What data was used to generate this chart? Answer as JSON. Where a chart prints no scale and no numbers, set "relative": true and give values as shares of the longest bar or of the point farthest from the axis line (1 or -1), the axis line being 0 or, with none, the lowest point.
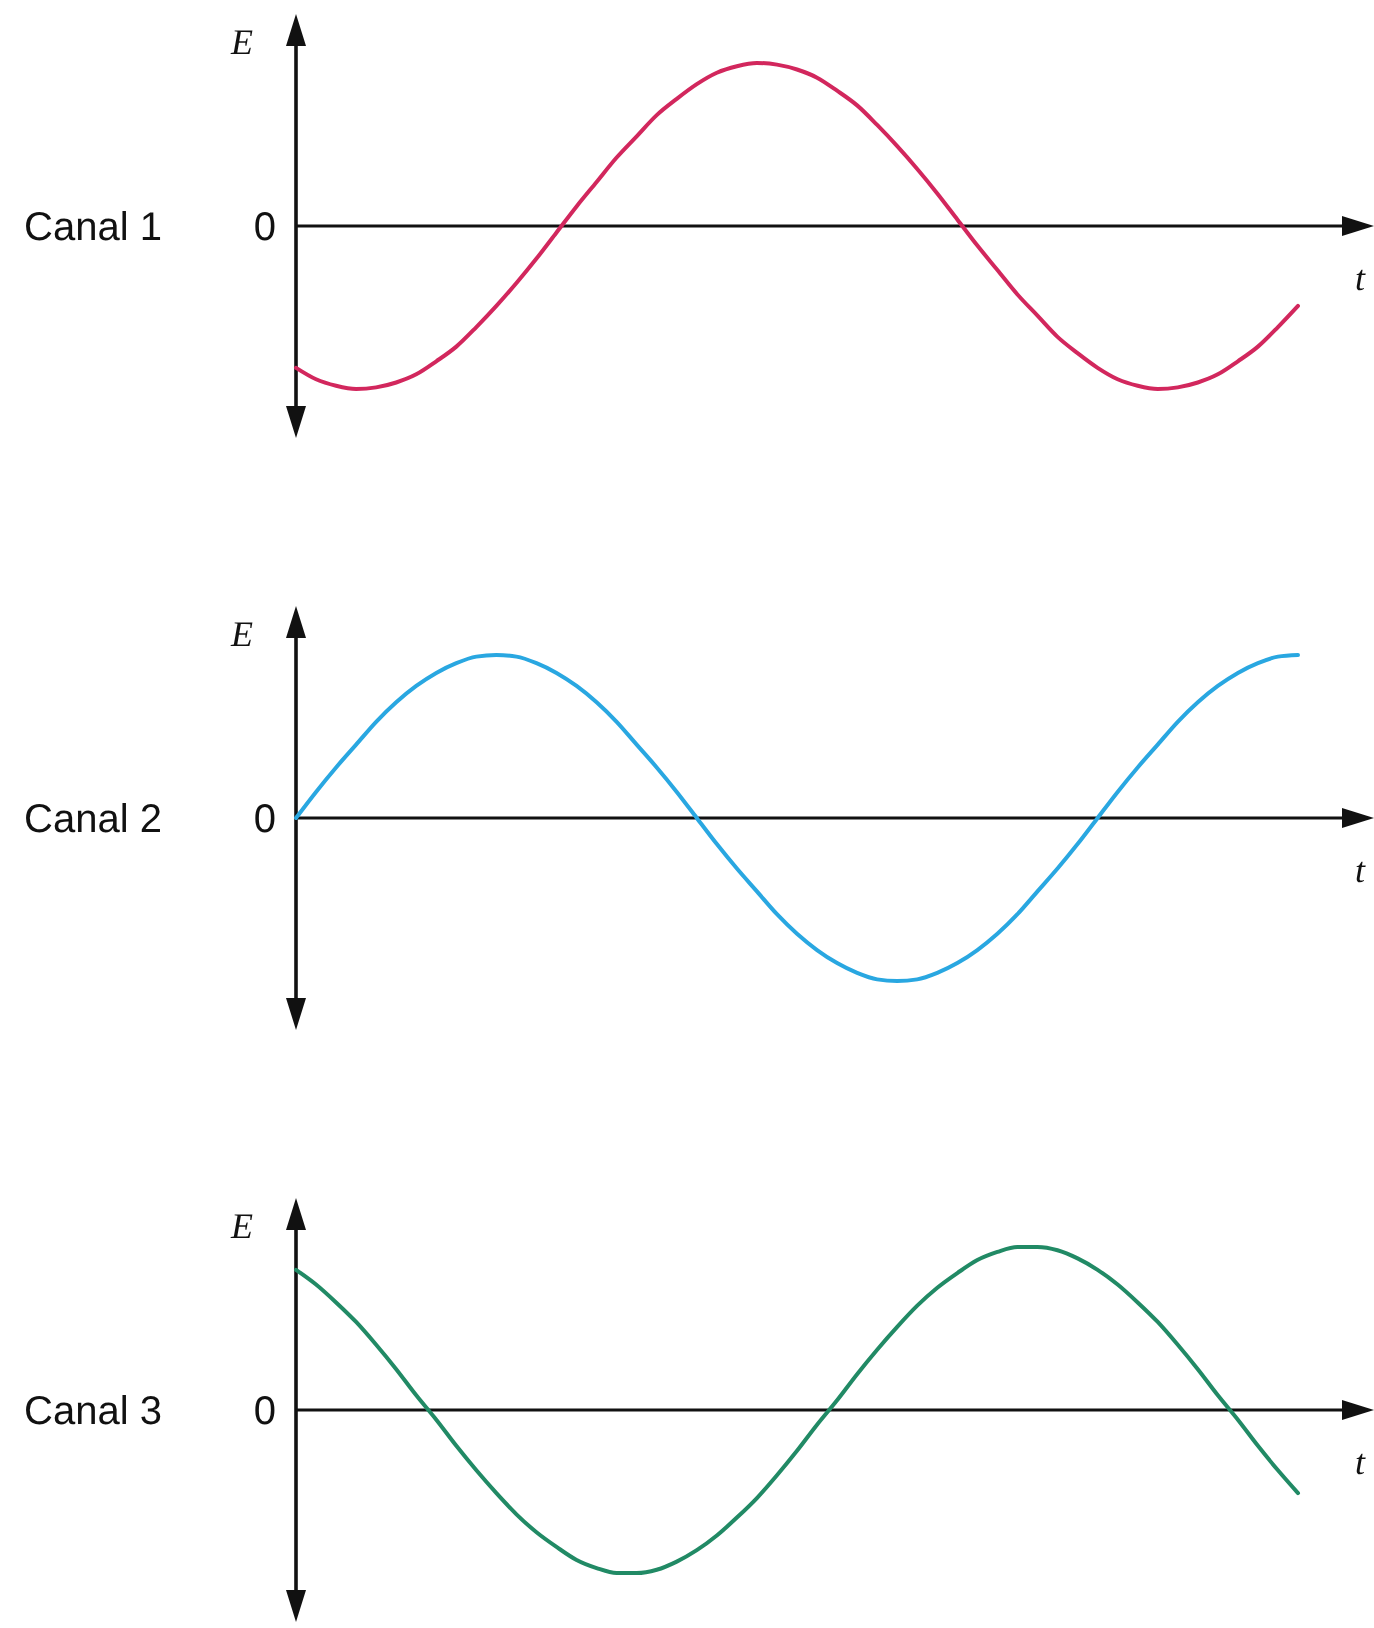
{
  "chart_data": [
    {
      "type": "line",
      "title": "Canal 1",
      "ylabel": "E",
      "xlabel": "t",
      "relative": true,
      "annotations": [
        "0"
      ],
      "categories": [
        null,
        null,
        null,
        null,
        null,
        null,
        null,
        null,
        null,
        null,
        null,
        null,
        null,
        null,
        null,
        null,
        null,
        null,
        null,
        null,
        null,
        null,
        null,
        null,
        null,
        null,
        null,
        null,
        null,
        null,
        null,
        null,
        null,
        null,
        null,
        null,
        null,
        null,
        null,
        null,
        null,
        null,
        null,
        null,
        null,
        null,
        null,
        null,
        null,
        null,
        null
      ],
      "color": "#d2275d",
      "values": [
        -0.87,
        -0.94,
        -0.98,
        -1,
        -0.99,
        -0.96,
        -0.91,
        -0.83,
        -0.74,
        -0.62,
        -0.49,
        -0.35,
        -0.2,
        -0.04,
        0.12,
        0.27,
        0.42,
        0.55,
        0.68,
        0.78,
        0.87,
        0.94,
        0.98,
        1,
        0.99,
        0.96,
        0.91,
        0.83,
        0.74,
        0.62,
        0.49,
        0.35,
        0.2,
        0.04,
        -0.12,
        -0.27,
        -0.42,
        -0.55,
        -0.68,
        -0.78,
        -0.87,
        -0.94,
        -0.98,
        -1,
        -0.99,
        -0.96,
        -0.91,
        -0.83,
        -0.74,
        -0.62,
        -0.49
      ]
    },
    {
      "type": "line",
      "title": "Canal 2",
      "ylabel": "E",
      "xlabel": "t",
      "relative": true,
      "annotations": [
        "0"
      ],
      "categories": [
        null,
        null,
        null,
        null,
        null,
        null,
        null,
        null,
        null,
        null,
        null,
        null,
        null,
        null,
        null,
        null,
        null,
        null,
        null,
        null,
        null,
        null,
        null,
        null,
        null,
        null,
        null,
        null,
        null,
        null,
        null,
        null,
        null,
        null,
        null,
        null,
        null,
        null,
        null,
        null,
        null,
        null,
        null,
        null,
        null,
        null,
        null,
        null,
        null,
        null,
        null
      ],
      "color": "#29a7e1",
      "values": [
        0,
        0.16,
        0.31,
        0.45,
        0.59,
        0.71,
        0.81,
        0.89,
        0.95,
        0.99,
        1,
        0.99,
        0.95,
        0.89,
        0.81,
        0.71,
        0.59,
        0.45,
        0.31,
        0.16,
        0,
        -0.16,
        -0.31,
        -0.45,
        -0.59,
        -0.71,
        -0.81,
        -0.89,
        -0.95,
        -0.99,
        -1,
        -0.99,
        -0.95,
        -0.89,
        -0.81,
        -0.71,
        -0.59,
        -0.45,
        -0.31,
        -0.16,
        0,
        0.16,
        0.31,
        0.45,
        0.59,
        0.71,
        0.81,
        0.89,
        0.95,
        0.99,
        1
      ]
    },
    {
      "type": "line",
      "title": "Canal 3",
      "ylabel": "E",
      "xlabel": "t",
      "relative": true,
      "annotations": [
        "0"
      ],
      "categories": [
        null,
        null,
        null,
        null,
        null,
        null,
        null,
        null,
        null,
        null,
        null,
        null,
        null,
        null,
        null,
        null,
        null,
        null,
        null,
        null,
        null,
        null,
        null,
        null,
        null,
        null,
        null,
        null,
        null,
        null,
        null,
        null,
        null,
        null,
        null,
        null,
        null,
        null,
        null,
        null,
        null,
        null,
        null,
        null,
        null,
        null,
        null,
        null,
        null,
        null,
        null
      ],
      "color": "#218a65",
      "values": [
        0.86,
        0.77,
        0.66,
        0.54,
        0.4,
        0.25,
        0.09,
        -0.06,
        -0.22,
        -0.37,
        -0.51,
        -0.64,
        -0.75,
        -0.84,
        -0.92,
        -0.97,
        -1,
        -1,
        -0.98,
        -0.93,
        -0.86,
        -0.77,
        -0.66,
        -0.54,
        -0.4,
        -0.25,
        -0.09,
        0.06,
        0.22,
        0.37,
        0.51,
        0.64,
        0.75,
        0.84,
        0.92,
        0.97,
        1,
        1,
        0.98,
        0.93,
        0.86,
        0.77,
        0.66,
        0.54,
        0.4,
        0.25,
        0.09,
        -0.06,
        -0.22,
        -0.37,
        -0.51
      ]
    }
  ]
}
